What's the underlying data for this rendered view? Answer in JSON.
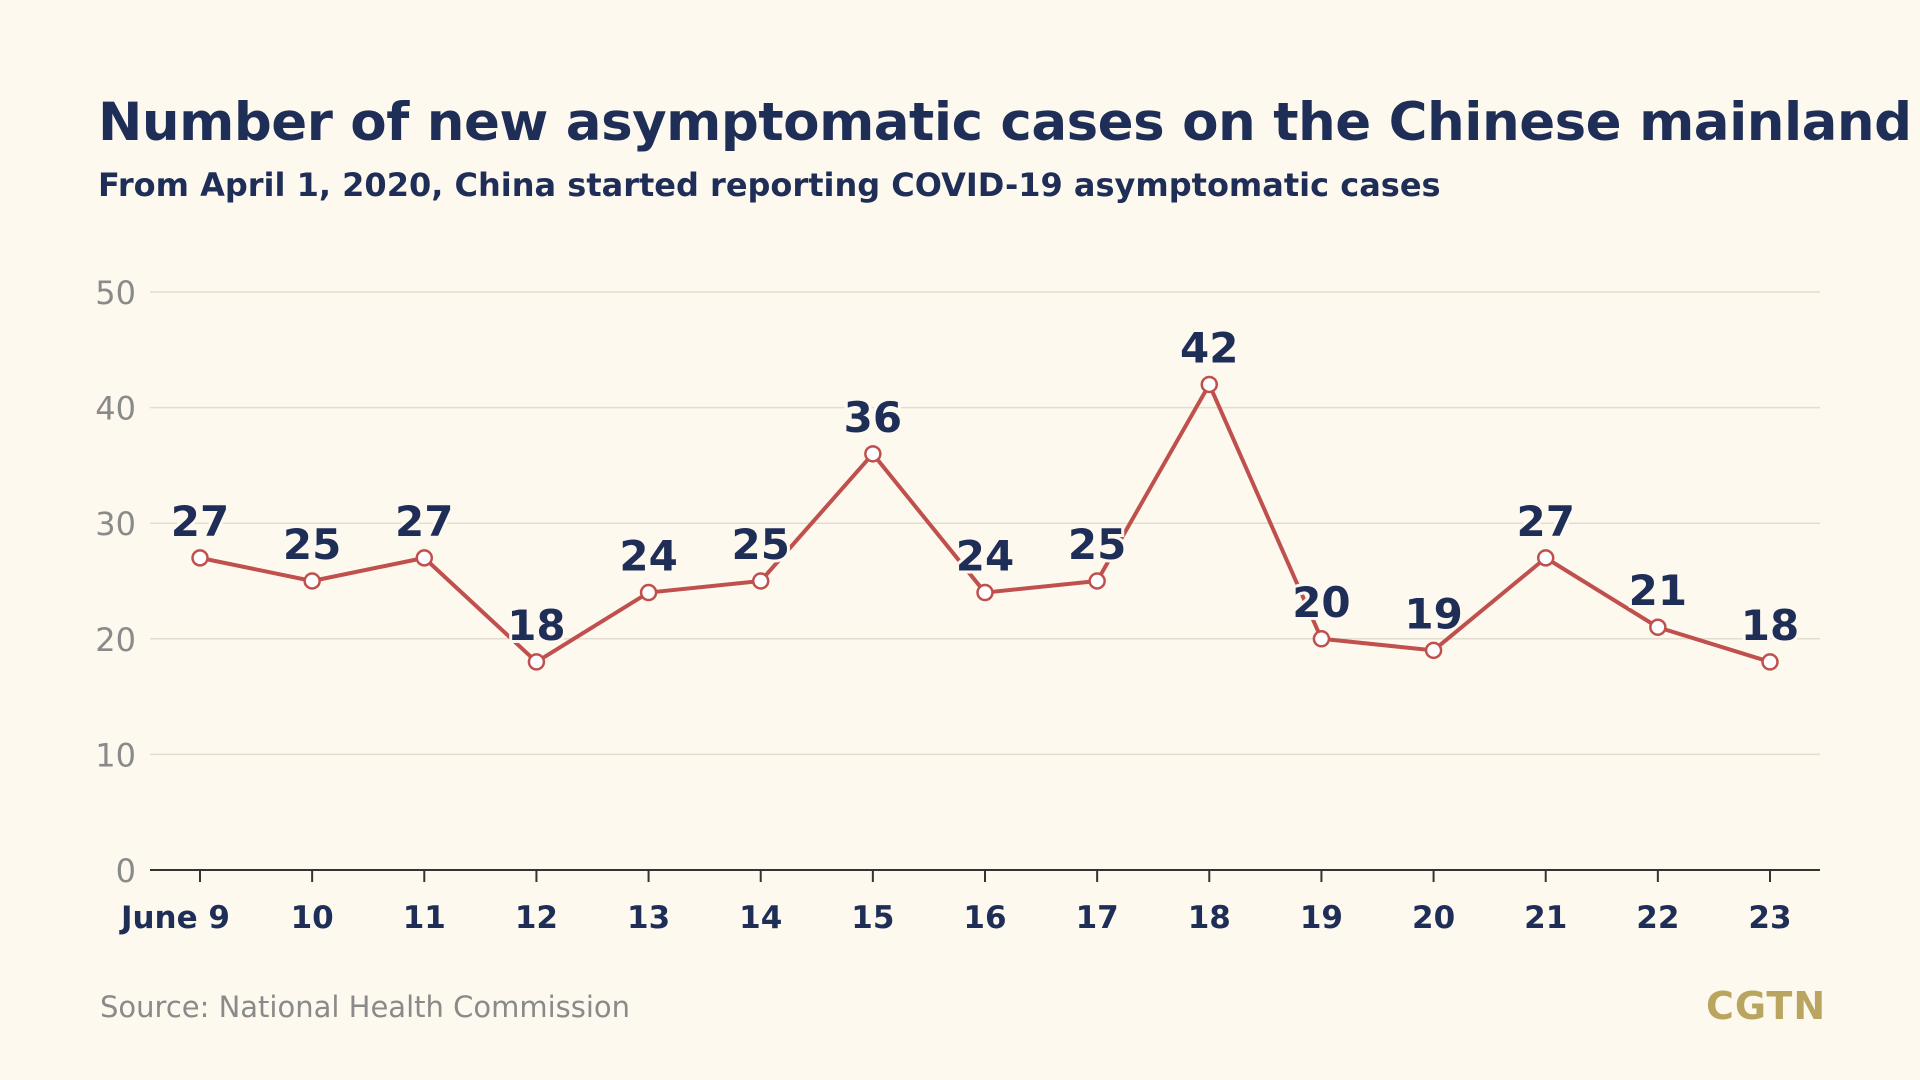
{
  "header": {
    "title": "Number of new asymptomatic cases on the Chinese mainland",
    "subtitle": "From April 1, 2020, China started reporting COVID-19 asymptomatic cases"
  },
  "footer": {
    "source": "Source: National Health Commission",
    "logo": "CGTN"
  },
  "colors": {
    "background": "#fdf9ef",
    "title": "#1f2e57",
    "line": "#c0504d",
    "grid": "#e3ddcf",
    "tick_text": "#8a8a8a",
    "logo": "#b9a560"
  },
  "chart_data": {
    "type": "line",
    "categories": [
      "June 9",
      "10",
      "11",
      "12",
      "13",
      "14",
      "15",
      "16",
      "17",
      "18",
      "19",
      "20",
      "21",
      "22",
      "23"
    ],
    "series": [
      {
        "values": [
          27,
          25,
          27,
          18,
          24,
          25,
          36,
          24,
          25,
          42,
          20,
          19,
          27,
          21,
          18
        ]
      }
    ],
    "y_ticks": [
      0,
      10,
      20,
      30,
      40,
      50
    ],
    "ylim": [
      0,
      50
    ],
    "grid": true,
    "data_labels": true,
    "markers": "open-circle"
  }
}
